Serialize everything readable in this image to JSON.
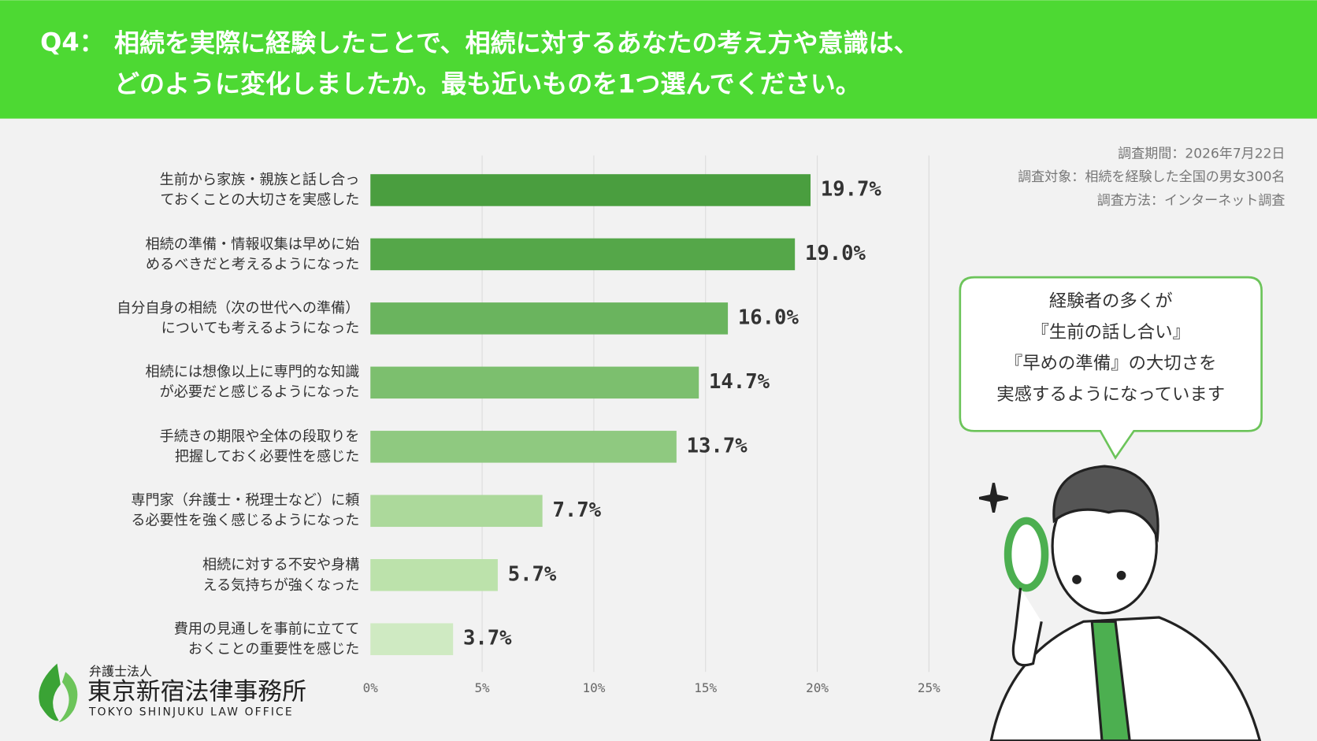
{
  "header": {
    "label": "Q4：",
    "question": "相続を実際に経験したことで、相続に対するあなたの考え方や意識は、\nどのように変化しましたか。最も近いものを1つ選んでください。"
  },
  "chart_data": {
    "type": "bar",
    "orientation": "horizontal",
    "categories": [
      "生前から家族・親族と話し合っ\nておくことの大切さを実感した",
      "相続の準備・情報収集は早めに始\nめるべきだと考えるようになった",
      "自分自身の相続（次の世代への準備）\nについても考えるようになった",
      "相続には想像以上に専門的な知識\nが必要だと感じるようになった",
      "手続きの期限や全体の段取りを\n把握しておく必要性を感じた",
      "専門家（弁護士・税理士など）に頼\nる必要性を強く感じるようになった",
      "相続に対する不安や身構\nえる気持ちが強くなった",
      "費用の見通しを事前に立てて\nおくことの重要性を感じた"
    ],
    "values": [
      19.7,
      19.0,
      16.0,
      14.7,
      13.7,
      7.7,
      5.7,
      3.7
    ],
    "value_labels": [
      "19.7%",
      "19.0%",
      "16.0%",
      "14.7%",
      "13.7%",
      "7.7%",
      "5.7%",
      "3.7%"
    ],
    "colors": [
      "#4a9e3f",
      "#55a749",
      "#6ab45e",
      "#7cbf6e",
      "#8fc980",
      "#acd99b",
      "#bce2ab",
      "#cfeac2"
    ],
    "xlim": [
      0,
      25
    ],
    "xticks": [
      {
        "value": 0,
        "label": "0%"
      },
      {
        "value": 5,
        "label": "5%"
      },
      {
        "value": 10,
        "label": "10%"
      },
      {
        "value": 15,
        "label": "15%"
      },
      {
        "value": 20,
        "label": "20%"
      },
      {
        "value": 25,
        "label": "25%"
      }
    ],
    "grid": true
  },
  "notes": [
    "調査期間：2026年7月22日",
    "調査対象：相続を経験した全国の男女300名",
    "調査方法：インターネット調査"
  ],
  "callout": "経験者の多くが\n『生前の話し合い』\n『早めの準備』の大切さを\n実感するようになっています",
  "logo": {
    "sub": "弁護士法人",
    "name": "東京新宿法律事務所",
    "english": "TOKYO SHINJUKU LAW OFFICE"
  }
}
